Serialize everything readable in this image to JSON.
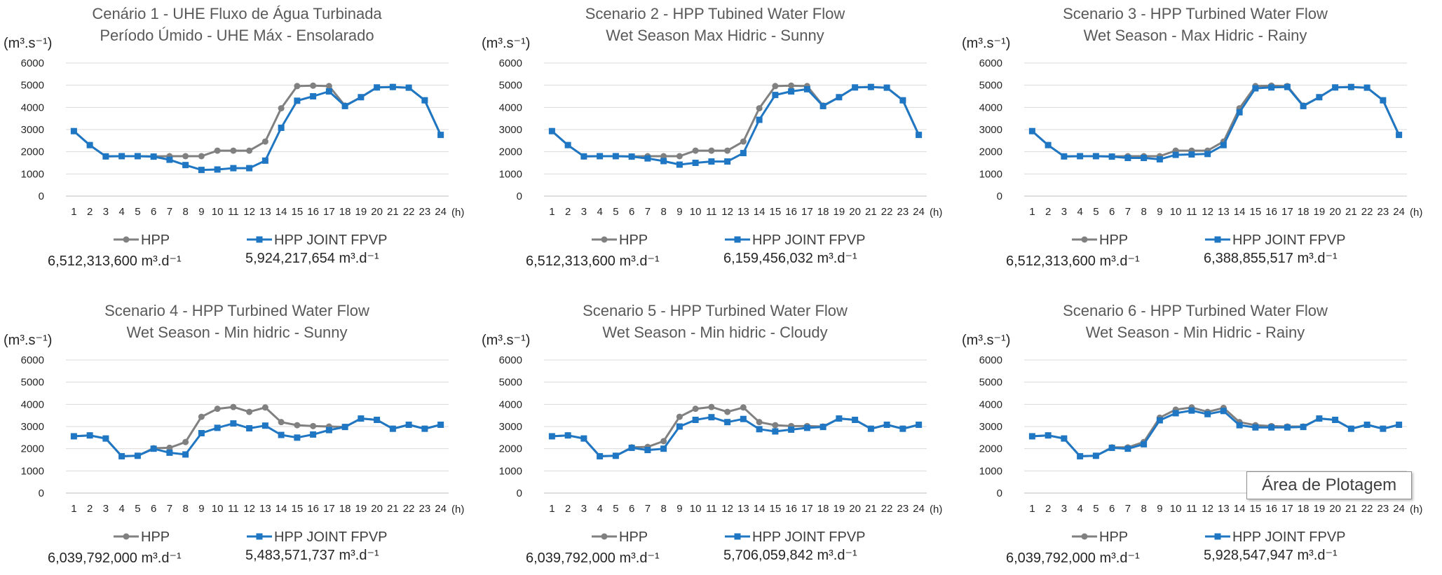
{
  "tooltip": "Área de Plotagem",
  "chart_data": [
    {
      "type": "line",
      "title": "Cenário 1 - UHE Fluxo de Água Turbinada",
      "subtitle": "Período Úmido - UHE Máx - Ensolarado",
      "ylabel": "(m³.s⁻¹)",
      "xlabel": "(h)",
      "ylim": [
        0,
        6000
      ],
      "yticks": [
        "0",
        "1000",
        "2000",
        "3000",
        "4000",
        "5000",
        "6000"
      ],
      "categories": [
        "1",
        "2",
        "3",
        "4",
        "5",
        "6",
        "7",
        "8",
        "9",
        "10",
        "11",
        "12",
        "13",
        "14",
        "15",
        "16",
        "17",
        "18",
        "19",
        "20",
        "21",
        "22",
        "23",
        "24"
      ],
      "grid": true,
      "legend_position": "bottom",
      "series": [
        {
          "name": "HPP",
          "color": "#808080",
          "marker": "circle",
          "values": [
            2930,
            2300,
            1790,
            1800,
            1800,
            1790,
            1800,
            1800,
            1800,
            2050,
            2050,
            2050,
            2460,
            3960,
            4960,
            4980,
            4960,
            4080,
            4460,
            4900,
            4920,
            4890,
            4320,
            2760
          ],
          "total": "6,512,313,600 m³.d⁻¹"
        },
        {
          "name": "HPP JOINT FPVP",
          "color": "#1f77c4",
          "marker": "square",
          "values": [
            2930,
            2300,
            1790,
            1800,
            1800,
            1780,
            1640,
            1400,
            1180,
            1200,
            1260,
            1260,
            1600,
            3080,
            4300,
            4500,
            4720,
            4060,
            4460,
            4900,
            4920,
            4890,
            4320,
            2760
          ],
          "total": "5,924,217,654 m³.d⁻¹"
        }
      ]
    },
    {
      "type": "line",
      "title": "Scenario 2 - HPP Tubined Water Flow",
      "subtitle": "Wet Season  Max Hidric - Sunny",
      "ylabel": "(m³.s⁻¹)",
      "xlabel": "(h)",
      "ylim": [
        0,
        6000
      ],
      "yticks": [
        "0",
        "1000",
        "2000",
        "3000",
        "4000",
        "5000",
        "6000"
      ],
      "categories": [
        "1",
        "2",
        "3",
        "4",
        "5",
        "6",
        "7",
        "8",
        "9",
        "10",
        "11",
        "12",
        "13",
        "14",
        "15",
        "16",
        "17",
        "18",
        "19",
        "20",
        "21",
        "22",
        "23",
        "24"
      ],
      "grid": true,
      "legend_position": "bottom",
      "series": [
        {
          "name": "HPP",
          "color": "#808080",
          "marker": "circle",
          "values": [
            2930,
            2300,
            1790,
            1800,
            1800,
            1790,
            1800,
            1800,
            1800,
            2050,
            2050,
            2050,
            2460,
            3960,
            4960,
            4980,
            4960,
            4080,
            4460,
            4900,
            4920,
            4890,
            4320,
            2760
          ],
          "total": "6,512,313,600 m³.d⁻¹"
        },
        {
          "name": "HPP JOINT FPVP",
          "color": "#1f77c4",
          "marker": "square",
          "values": [
            2930,
            2300,
            1790,
            1800,
            1800,
            1780,
            1700,
            1580,
            1420,
            1500,
            1560,
            1560,
            1940,
            3440,
            4560,
            4720,
            4820,
            4060,
            4460,
            4900,
            4920,
            4890,
            4320,
            2760
          ],
          "total": "6,159,456,032 m³.d⁻¹"
        }
      ]
    },
    {
      "type": "line",
      "title": "Scenario 3 - HPP Turbined Water Flow",
      "subtitle": "Wet Season - Max Hidric - Rainy",
      "ylabel": "(m³.s⁻¹)",
      "xlabel": "(h)",
      "ylim": [
        0,
        6000
      ],
      "yticks": [
        "0",
        "1000",
        "2000",
        "3000",
        "4000",
        "5000",
        "6000"
      ],
      "categories": [
        "1",
        "2",
        "3",
        "4",
        "5",
        "6",
        "7",
        "8",
        "9",
        "10",
        "11",
        "12",
        "13",
        "14",
        "15",
        "16",
        "17",
        "18",
        "19",
        "20",
        "21",
        "22",
        "23",
        "24"
      ],
      "grid": true,
      "legend_position": "bottom",
      "series": [
        {
          "name": "HPP",
          "color": "#808080",
          "marker": "circle",
          "values": [
            2930,
            2300,
            1790,
            1800,
            1800,
            1790,
            1800,
            1800,
            1800,
            2050,
            2050,
            2050,
            2460,
            3960,
            4960,
            4980,
            4960,
            4080,
            4460,
            4900,
            4920,
            4890,
            4320,
            2760
          ],
          "total": "6,512,313,600 m³.d⁻¹"
        },
        {
          "name": "HPP JOINT FPVP",
          "color": "#1f77c4",
          "marker": "square",
          "values": [
            2930,
            2300,
            1790,
            1800,
            1800,
            1780,
            1720,
            1720,
            1660,
            1860,
            1880,
            1900,
            2300,
            3780,
            4860,
            4900,
            4920,
            4060,
            4460,
            4900,
            4920,
            4890,
            4320,
            2760
          ],
          "total": "6,388,855,517 m³.d⁻¹"
        }
      ]
    },
    {
      "type": "line",
      "title": "Scenario 4 - HPP Turbined Water Flow",
      "subtitle": "Wet Season - Min hidric - Sunny",
      "ylabel": "(m³.s⁻¹)",
      "xlabel": "(h)",
      "ylim": [
        0,
        6000
      ],
      "yticks": [
        "0",
        "1000",
        "2000",
        "3000",
        "4000",
        "5000",
        "6000"
      ],
      "categories": [
        "1",
        "2",
        "3",
        "4",
        "5",
        "6",
        "7",
        "8",
        "9",
        "10",
        "11",
        "12",
        "13",
        "14",
        "15",
        "16",
        "17",
        "18",
        "19",
        "20",
        "21",
        "22",
        "23",
        "24"
      ],
      "grid": true,
      "legend_position": "bottom",
      "series": [
        {
          "name": "HPP",
          "color": "#808080",
          "marker": "circle",
          "values": [
            2560,
            2600,
            2460,
            1660,
            1680,
            2020,
            2040,
            2300,
            3440,
            3800,
            3880,
            3660,
            3860,
            3200,
            3060,
            3020,
            3000,
            2980,
            3360,
            3300,
            2900,
            3080,
            2900,
            3080
          ],
          "total": "6,039,792,000 m³.d⁻¹"
        },
        {
          "name": "HPP JOINT FPVP",
          "color": "#1f77c4",
          "marker": "square",
          "values": [
            2560,
            2600,
            2460,
            1660,
            1680,
            2000,
            1820,
            1740,
            2700,
            2940,
            3140,
            2920,
            3040,
            2620,
            2500,
            2640,
            2840,
            2980,
            3360,
            3300,
            2900,
            3080,
            2900,
            3080
          ],
          "total": "5,483,571,737 m³.d⁻¹"
        }
      ]
    },
    {
      "type": "line",
      "title": "Scenario 5 - HPP Turbined Water Flow",
      "subtitle": "Wet Season - Min hidric - Cloudy",
      "ylabel": "(m³.s⁻¹)",
      "xlabel": "(h)",
      "ylim": [
        0,
        6000
      ],
      "yticks": [
        "0",
        "1000",
        "2000",
        "3000",
        "4000",
        "5000",
        "6000"
      ],
      "categories": [
        "1",
        "2",
        "3",
        "4",
        "5",
        "6",
        "7",
        "8",
        "9",
        "10",
        "11",
        "12",
        "13",
        "14",
        "15",
        "16",
        "17",
        "18",
        "19",
        "20",
        "21",
        "22",
        "23",
        "24"
      ],
      "grid": true,
      "legend_position": "bottom",
      "series": [
        {
          "name": "HPP",
          "color": "#808080",
          "marker": "circle",
          "values": [
            2560,
            2600,
            2460,
            1660,
            1680,
            2060,
            2080,
            2340,
            3440,
            3800,
            3880,
            3660,
            3860,
            3200,
            3060,
            3020,
            3020,
            3000,
            3360,
            3300,
            2900,
            3080,
            2900,
            3080
          ],
          "total": "6,039,792,000 m³.d⁻¹"
        },
        {
          "name": "HPP JOINT FPVP",
          "color": "#1f77c4",
          "marker": "square",
          "values": [
            2560,
            2600,
            2460,
            1660,
            1680,
            2040,
            1940,
            2000,
            3000,
            3300,
            3420,
            3200,
            3340,
            2880,
            2780,
            2860,
            2940,
            2980,
            3360,
            3300,
            2900,
            3080,
            2900,
            3080
          ],
          "total": "5,706,059,842 m³.d⁻¹"
        }
      ]
    },
    {
      "type": "line",
      "title": "Scenario 6 - HPP Turbined Water Flow",
      "subtitle": "Wet Season - Min Hidric - Rainy",
      "ylabel": "(m³.s⁻¹)",
      "xlabel": "(h)",
      "ylim": [
        0,
        6000
      ],
      "yticks": [
        "0",
        "1000",
        "2000",
        "3000",
        "4000",
        "5000",
        "6000"
      ],
      "categories": [
        "1",
        "2",
        "3",
        "4",
        "5",
        "6",
        "7",
        "8",
        "9",
        "10",
        "11",
        "12",
        "13",
        "14",
        "15",
        "16",
        "17",
        "18",
        "19",
        "20",
        "21",
        "22",
        "23",
        "24"
      ],
      "grid": true,
      "legend_position": "bottom",
      "series": [
        {
          "name": "HPP",
          "color": "#808080",
          "marker": "circle",
          "values": [
            2560,
            2600,
            2460,
            1660,
            1680,
            2060,
            2060,
            2300,
            3400,
            3760,
            3860,
            3660,
            3840,
            3200,
            3060,
            3020,
            3000,
            3000,
            3360,
            3300,
            2900,
            3080,
            2900,
            3080
          ],
          "total": "6,039,792,000 m³.d⁻¹"
        },
        {
          "name": "HPP JOINT FPVP",
          "color": "#1f77c4",
          "marker": "square",
          "values": [
            2560,
            2600,
            2460,
            1660,
            1680,
            2040,
            2000,
            2200,
            3280,
            3600,
            3720,
            3560,
            3700,
            3060,
            2960,
            2960,
            2960,
            2980,
            3360,
            3300,
            2900,
            3080,
            2900,
            3080
          ],
          "total": "5,928,547,947 m³.d⁻¹"
        }
      ]
    }
  ]
}
